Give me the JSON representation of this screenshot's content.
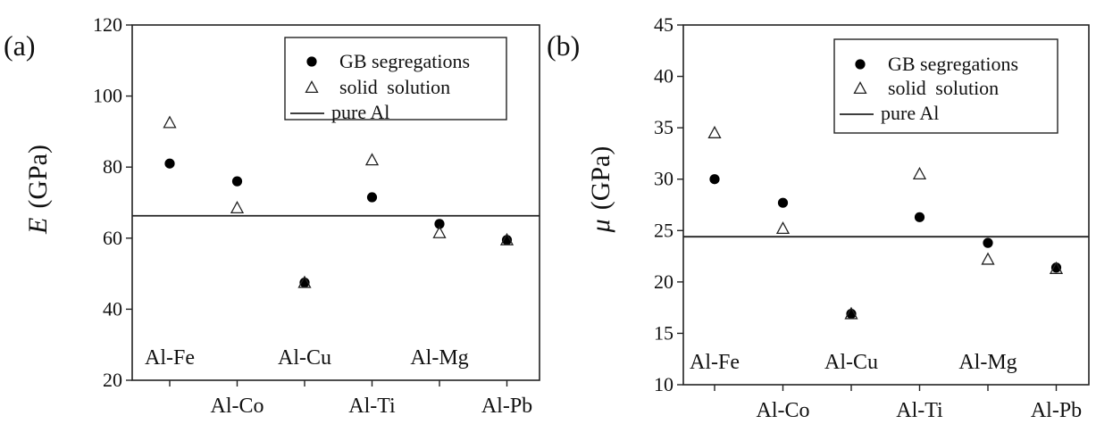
{
  "chart_data": [
    {
      "type": "scatter",
      "panel_label": "(a)",
      "ylabel_symbol": "E",
      "ylabel_unit": "(GPa)",
      "ylim": [
        20,
        120
      ],
      "yticks": [
        20,
        40,
        60,
        80,
        100,
        120
      ],
      "grid": false,
      "legend_position": "top-right",
      "categories": [
        "Al-Fe",
        "Al-Co",
        "Al-Cu",
        "Al-Ti",
        "Al-Mg",
        "Al-Pb"
      ],
      "category_rows": [
        "lower",
        "upper",
        "lower",
        "upper",
        "lower",
        "upper"
      ],
      "series": [
        {
          "name": "GB segregations",
          "marker": "filled-circle",
          "values": [
            81,
            76,
            47.5,
            71.5,
            64,
            59.5
          ]
        },
        {
          "name": "solid solution",
          "marker": "open-triangle",
          "values": [
            92.5,
            68.5,
            47.5,
            82,
            61.5,
            59.5
          ]
        }
      ],
      "reference_line": {
        "name": "pure Al",
        "value": 66.3
      }
    },
    {
      "type": "scatter",
      "panel_label": "(b)",
      "ylabel_symbol": "μ",
      "ylabel_unit": "(GPa)",
      "ylim": [
        10,
        45
      ],
      "yticks": [
        10,
        15,
        20,
        25,
        30,
        35,
        40,
        45
      ],
      "grid": false,
      "legend_position": "top-right",
      "categories": [
        "Al-Fe",
        "Al-Co",
        "Al-Cu",
        "Al-Ti",
        "Al-Mg",
        "Al-Pb"
      ],
      "category_rows": [
        "lower",
        "upper",
        "lower",
        "upper",
        "lower",
        "upper"
      ],
      "series": [
        {
          "name": "GB segregations",
          "marker": "filled-circle",
          "values": [
            30,
            27.7,
            16.9,
            26.3,
            23.8,
            21.4
          ]
        },
        {
          "name": "solid solution",
          "marker": "open-triangle",
          "values": [
            34.5,
            25.2,
            16.9,
            30.5,
            22.2,
            21.3
          ]
        }
      ],
      "reference_line": {
        "name": "pure Al",
        "value": 24.4
      }
    }
  ]
}
